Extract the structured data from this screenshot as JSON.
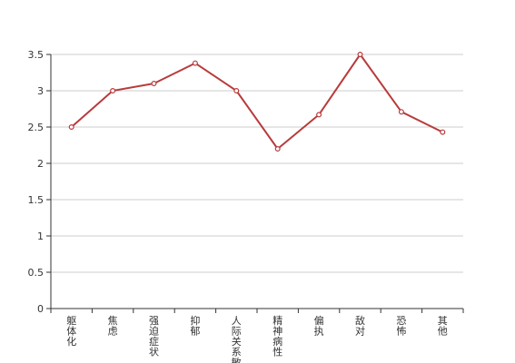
{
  "chart_data": {
    "type": "line",
    "categories": [
      "躯体化",
      "焦虑",
      "强迫症状",
      "抑郁",
      "人际关系敏感",
      "精神病性",
      "偏执",
      "敌对",
      "恐怖",
      "其他"
    ],
    "series": [
      {
        "values": [
          2.5,
          3.0,
          3.1,
          3.38,
          3.0,
          2.2,
          2.67,
          3.5,
          2.71,
          2.43
        ],
        "color": "#b83b3b"
      }
    ],
    "ylim": [
      0,
      3.5
    ],
    "yticks": [
      "0",
      "0.5",
      "1",
      "1.5",
      "2",
      "2.5",
      "3",
      "3.5"
    ],
    "grid": true,
    "legend": "none"
  }
}
